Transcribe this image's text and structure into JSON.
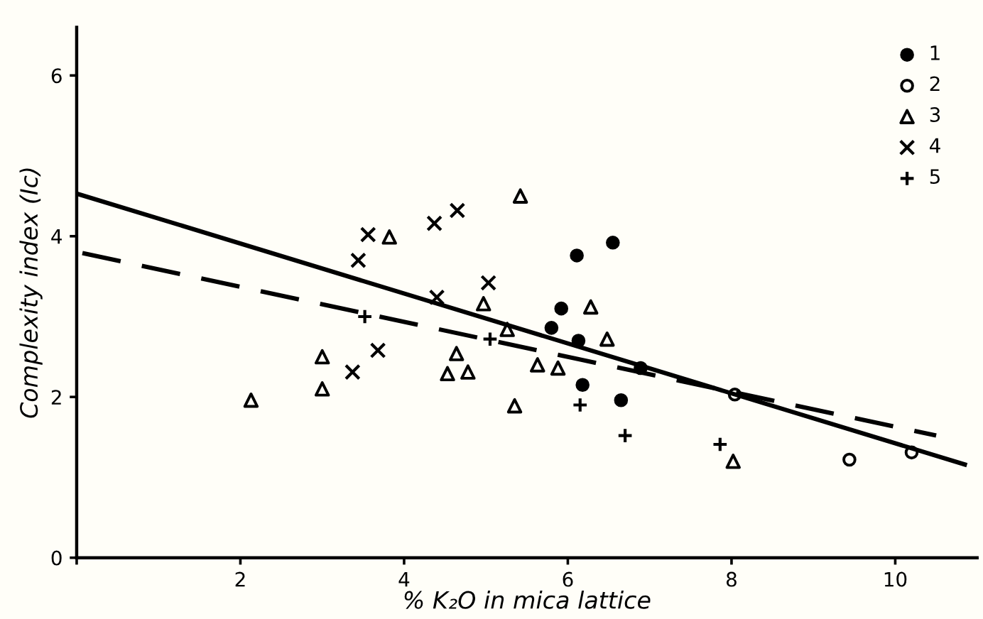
{
  "chart_data": {
    "type": "scatter",
    "xlabel": "% K₂O in mica lattice",
    "ylabel": "Complexity index (Ic)",
    "xlim": [
      0,
      11
    ],
    "ylim": [
      0,
      6.6
    ],
    "xticks": [
      {
        "value": 0,
        "label": null
      },
      2,
      4,
      6,
      8,
      10
    ],
    "yticks": [
      0,
      2,
      4,
      6
    ],
    "grid": false,
    "legend": "top right",
    "series": [
      {
        "name": "1",
        "color": "#000000",
        "marker": "circle",
        "x": [
          6.11,
          6.55,
          5.92,
          5.8,
          6.13,
          6.18,
          6.65,
          6.89
        ],
        "values": [
          3.76,
          3.92,
          3.1,
          2.86,
          2.7,
          2.15,
          1.96,
          2.36
        ]
      },
      {
        "name": "2",
        "color": "#000000",
        "marker": "circle",
        "x": [
          8.04,
          9.44,
          10.2
        ],
        "values": [
          2.03,
          1.22,
          1.31
        ]
      },
      {
        "name": "3",
        "color": "#000000",
        "marker": "triangle",
        "x": [
          3.82,
          5.42,
          2.13,
          3.0,
          3.0,
          4.64,
          4.53,
          4.78,
          4.97,
          5.26,
          6.28,
          6.48,
          5.63,
          5.88,
          5.35,
          8.02
        ],
        "values": [
          3.99,
          4.5,
          1.96,
          2.5,
          2.1,
          2.54,
          2.29,
          2.31,
          3.16,
          2.84,
          3.12,
          2.72,
          2.4,
          2.36,
          1.89,
          1.2
        ]
      },
      {
        "name": "4",
        "color": "#000000",
        "marker": "cross",
        "x": [
          3.44,
          3.56,
          4.37,
          4.65,
          4.4,
          5.03,
          3.37,
          3.68
        ],
        "values": [
          3.7,
          4.02,
          4.16,
          4.32,
          3.24,
          3.42,
          2.31,
          2.58
        ]
      },
      {
        "name": "5",
        "color": "#000000",
        "marker": "plus",
        "x": [
          3.52,
          5.05,
          6.15,
          6.7,
          7.86
        ],
        "values": [
          3.0,
          2.72,
          1.9,
          1.52,
          1.41
        ]
      },
      {
        "type": "line",
        "color": "#000000",
        "line_style": "solid",
        "x": [
          0,
          10.85
        ],
        "values": [
          4.53,
          1.16
        ]
      },
      {
        "type": "line",
        "color": "#000000",
        "line_style": "dashed",
        "x": [
          0.07,
          10.5
        ],
        "values": [
          3.79,
          1.52
        ]
      }
    ]
  }
}
